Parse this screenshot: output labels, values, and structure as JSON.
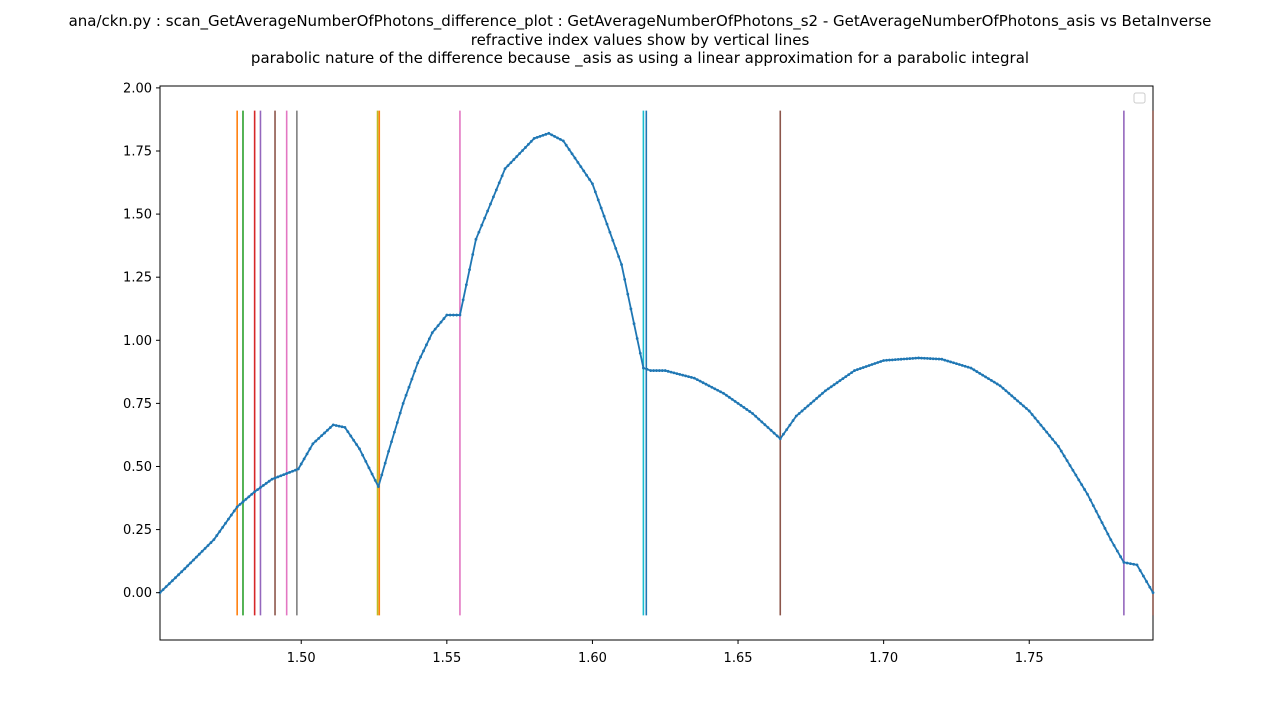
{
  "chart_data": {
    "type": "line",
    "title_lines": [
      "ana/ckn.py : scan_GetAverageNumberOfPhotons_difference_plot : GetAverageNumberOfPhotons_s2 - GetAverageNumberOfPhotons_asis vs BetaInverse",
      "refractive index values show by vertical lines",
      "parabolic nature of the difference because  _asis as using a linear approximation for a parabolic integral"
    ],
    "xlabel": "",
    "ylabel": "",
    "xlim": [
      1.4515,
      1.7925
    ],
    "ylim": [
      -0.1875,
      2.0075
    ],
    "x_ticks": [
      1.5,
      1.55,
      1.6,
      1.65,
      1.7,
      1.75
    ],
    "x_tick_labels": [
      "1.50",
      "1.55",
      "1.60",
      "1.65",
      "1.70",
      "1.75"
    ],
    "y_ticks": [
      0.0,
      0.25,
      0.5,
      0.75,
      1.0,
      1.25,
      1.5,
      1.75,
      2.0
    ],
    "y_tick_labels": [
      "0.00",
      "0.25",
      "0.50",
      "0.75",
      "1.00",
      "1.25",
      "1.50",
      "1.75",
      "2.00"
    ],
    "grid": false,
    "legend": "top-right (empty)",
    "series": [
      {
        "color": "#1f77b4",
        "marker": "dot",
        "points": [
          [
            1.4515,
            0.0
          ],
          [
            1.46,
            0.095
          ],
          [
            1.47,
            0.21
          ],
          [
            1.478,
            0.34
          ],
          [
            1.484,
            0.4
          ],
          [
            1.49,
            0.45
          ],
          [
            1.499,
            0.49
          ],
          [
            1.504,
            0.59
          ],
          [
            1.511,
            0.665
          ],
          [
            1.515,
            0.655
          ],
          [
            1.52,
            0.57
          ],
          [
            1.5265,
            0.42
          ],
          [
            1.53,
            0.56
          ],
          [
            1.535,
            0.75
          ],
          [
            1.54,
            0.91
          ],
          [
            1.545,
            1.03
          ],
          [
            1.55,
            1.1
          ],
          [
            1.5545,
            1.1
          ],
          [
            1.56,
            1.4
          ],
          [
            1.57,
            1.68
          ],
          [
            1.58,
            1.8
          ],
          [
            1.585,
            1.82
          ],
          [
            1.59,
            1.79
          ],
          [
            1.6,
            1.62
          ],
          [
            1.61,
            1.3
          ],
          [
            1.6175,
            0.89
          ],
          [
            1.62,
            0.88
          ],
          [
            1.625,
            0.88
          ],
          [
            1.635,
            0.85
          ],
          [
            1.645,
            0.79
          ],
          [
            1.655,
            0.71
          ],
          [
            1.6645,
            0.61
          ],
          [
            1.67,
            0.7
          ],
          [
            1.68,
            0.8
          ],
          [
            1.69,
            0.88
          ],
          [
            1.7,
            0.92
          ],
          [
            1.712,
            0.93
          ],
          [
            1.72,
            0.925
          ],
          [
            1.73,
            0.89
          ],
          [
            1.74,
            0.82
          ],
          [
            1.75,
            0.72
          ],
          [
            1.76,
            0.58
          ],
          [
            1.77,
            0.39
          ],
          [
            1.778,
            0.21
          ],
          [
            1.7825,
            0.12
          ],
          [
            1.787,
            0.11
          ],
          [
            1.7925,
            0.0
          ]
        ]
      }
    ],
    "vertical_lines": [
      {
        "x": 1.478,
        "color": "#ff7f0e"
      },
      {
        "x": 1.48,
        "color": "#2ca02c"
      },
      {
        "x": 1.484,
        "color": "#d62728"
      },
      {
        "x": 1.486,
        "color": "#9467bd"
      },
      {
        "x": 1.491,
        "color": "#8c564b"
      },
      {
        "x": 1.495,
        "color": "#e377c2"
      },
      {
        "x": 1.4985,
        "color": "#7f7f7f"
      },
      {
        "x": 1.5262,
        "color": "#bcbd22"
      },
      {
        "x": 1.5268,
        "color": "#ff7f0e"
      },
      {
        "x": 1.5545,
        "color": "#e377c2"
      },
      {
        "x": 1.6175,
        "color": "#17becf"
      },
      {
        "x": 1.6185,
        "color": "#1f77b4"
      },
      {
        "x": 1.6645,
        "color": "#8c564b"
      },
      {
        "x": 1.7825,
        "color": "#9467bd"
      },
      {
        "x": 1.7925,
        "color": "#8c564b"
      }
    ],
    "vertical_line_y_range": [
      -0.09,
      1.91
    ]
  }
}
